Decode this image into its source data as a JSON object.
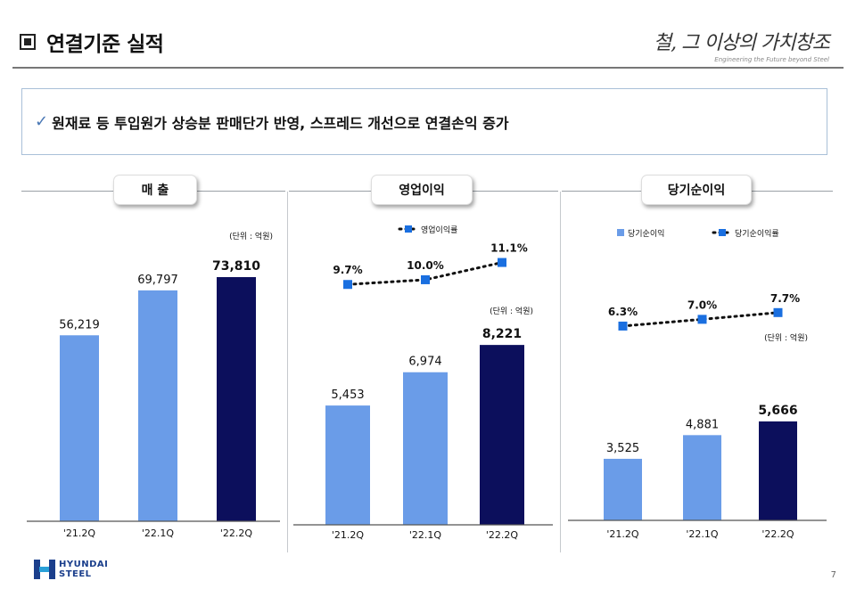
{
  "header": {
    "title": "연결기준 실적",
    "slogan": "철, 그 이상의 가치창조",
    "tagline": "Engineering the Future beyond Steel"
  },
  "summary": {
    "check": "✓",
    "text": "원재료 등 투입원가 상승분 판매단가 반영, 스프레드 개선으로 연결손익 증가"
  },
  "panels": {
    "sales": {
      "title": "매 출"
    },
    "op": {
      "title": "영업이익"
    },
    "net": {
      "title": "당기순이익"
    }
  },
  "chart_data": [
    {
      "type": "bar",
      "title": "매 출",
      "unit": "(단위 : 억원)",
      "categories": [
        "'21.2Q",
        "'22.1Q",
        "'22.2Q"
      ],
      "values": [
        56219,
        69797,
        73810
      ],
      "value_labels": [
        "56,219",
        "69,797",
        "73,810"
      ],
      "colors": [
        "#6a9ce8",
        "#6a9ce8",
        "#0c0f5c"
      ],
      "ylim": [
        0,
        80000
      ]
    },
    {
      "type": "bar",
      "title": "영업이익",
      "unit": "(단위 : 억원)",
      "categories": [
        "'21.2Q",
        "'22.1Q",
        "'22.2Q"
      ],
      "values": [
        5453,
        6974,
        8221
      ],
      "value_labels": [
        "5,453",
        "6,974",
        "8,221"
      ],
      "colors": [
        "#6a9ce8",
        "#6a9ce8",
        "#0c0f5c"
      ],
      "ylim": [
        0,
        9000
      ],
      "line_series": {
        "name": "영업이익률",
        "values": [
          9.7,
          10.0,
          11.1
        ],
        "labels": [
          "9.7%",
          "10.0%",
          "11.1%"
        ],
        "ylim": [
          7.5,
          11.7
        ],
        "color": "#1a6fe0"
      }
    },
    {
      "type": "bar",
      "title": "당기순이익",
      "unit": "(단위 : 억원)",
      "categories": [
        "'21.2Q",
        "'22.1Q",
        "'22.2Q"
      ],
      "values": [
        3525,
        4881,
        5666
      ],
      "value_labels": [
        "3,525",
        "4,881",
        "5,666"
      ],
      "colors": [
        "#6a9ce8",
        "#6a9ce8",
        "#0c0f5c"
      ],
      "ylim": [
        0,
        10000
      ],
      "bar_legend": "당기순이익",
      "line_series": {
        "name": "당기순이익률",
        "values": [
          6.3,
          7.0,
          7.7
        ],
        "labels": [
          "6.3%",
          "7.0%",
          "7.7%"
        ],
        "ylim": [
          2.5,
          8.7
        ],
        "color": "#1a6fe0"
      }
    }
  ],
  "footer": {
    "logo_line1": "HYUNDAI",
    "logo_line2": "STEEL",
    "page_number": "7"
  }
}
